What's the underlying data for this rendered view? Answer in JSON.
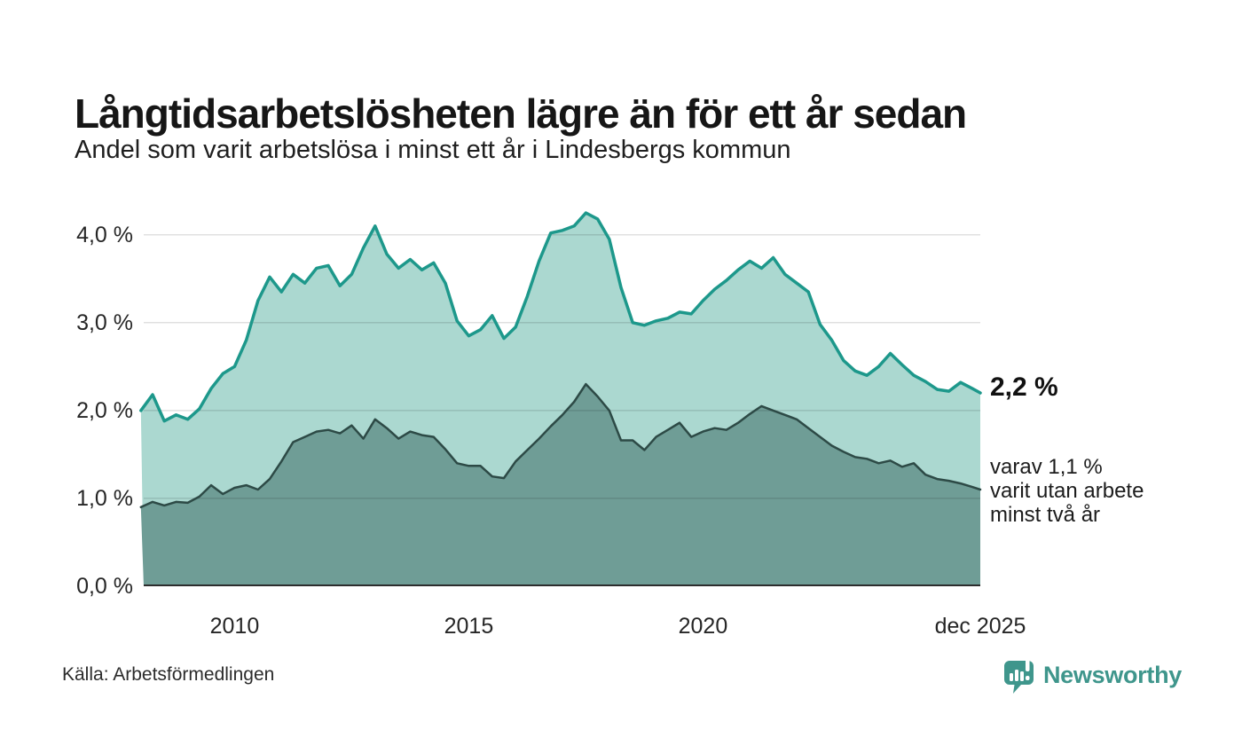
{
  "annotations": {
    "latest_total": "2,2 %",
    "latest_two_years": "varav 1,1 %\nvarit utan arbete\nminst två år"
  },
  "source": {
    "label": "Källa: Arbetsförmedlingen"
  },
  "logo": {
    "brand": "Newsworthy"
  },
  "colors": {
    "background": "#ffffff",
    "gridline": "rgba(0,0,0,0.12)",
    "baseline": "#2d2d2d",
    "title_text": "#161616",
    "tick_text": "#262626",
    "brand_teal": "#3f968c"
  },
  "chart_data": {
    "type": "area",
    "title": "Långtidsarbetslösheten lägre än för ett år sedan",
    "subtitle": "Andel som varit arbetslösa i minst ett år i Lindesbergs kommun",
    "unit": "%",
    "grid": true,
    "legend": "none (direct labels at line ends)",
    "xlim": [
      2008.06,
      2025.92
    ],
    "ylim": [
      0,
      4.3
    ],
    "x_ticks": [
      {
        "value": 2010,
        "label": "2010"
      },
      {
        "value": 2015,
        "label": "2015"
      },
      {
        "value": 2020,
        "label": "2020"
      },
      {
        "value": 2025.92,
        "label": "dec 2025"
      }
    ],
    "y_ticks": [
      {
        "value": 0,
        "label": "0,0 %"
      },
      {
        "value": 1,
        "label": "1,0 %"
      },
      {
        "value": 2,
        "label": "2,0 %"
      },
      {
        "value": 3,
        "label": "3,0 %"
      },
      {
        "value": 4,
        "label": "4,0 %"
      }
    ],
    "x": [
      2008,
      2008.25,
      2008.5,
      2008.75,
      2009,
      2009.25,
      2009.5,
      2009.75,
      2010,
      2010.25,
      2010.5,
      2010.75,
      2011,
      2011.25,
      2011.5,
      2011.75,
      2012,
      2012.25,
      2012.5,
      2012.75,
      2013,
      2013.25,
      2013.5,
      2013.75,
      2014,
      2014.25,
      2014.5,
      2014.75,
      2015,
      2015.25,
      2015.5,
      2015.75,
      2016,
      2016.25,
      2016.5,
      2016.75,
      2017,
      2017.25,
      2017.5,
      2017.75,
      2018,
      2018.25,
      2018.5,
      2018.75,
      2019,
      2019.25,
      2019.5,
      2019.75,
      2020,
      2020.25,
      2020.5,
      2020.75,
      2021,
      2021.25,
      2021.5,
      2021.75,
      2022,
      2022.25,
      2022.5,
      2022.75,
      2023,
      2023.25,
      2023.5,
      2023.75,
      2024,
      2024.25,
      2024.5,
      2024.75,
      2025,
      2025.25,
      2025.5,
      2025.75,
      2025.92
    ],
    "series": [
      {
        "name": "Arbetslösa minst ett år",
        "color": "#1d988b",
        "fill": "#abd8d0",
        "latest_value": 2.2,
        "values": [
          2.0,
          2.18,
          1.88,
          1.95,
          1.9,
          2.02,
          2.25,
          2.42,
          2.5,
          2.8,
          3.25,
          3.52,
          3.35,
          3.55,
          3.45,
          3.62,
          3.65,
          3.42,
          3.55,
          3.85,
          4.1,
          3.78,
          3.62,
          3.72,
          3.6,
          3.68,
          3.45,
          3.02,
          2.85,
          2.92,
          3.08,
          2.82,
          2.95,
          3.3,
          3.7,
          4.02,
          4.05,
          4.1,
          4.25,
          4.18,
          3.95,
          3.4,
          3.0,
          2.97,
          3.02,
          3.05,
          3.12,
          3.1,
          3.25,
          3.38,
          3.48,
          3.6,
          3.7,
          3.62,
          3.74,
          3.55,
          3.45,
          3.35,
          2.98,
          2.8,
          2.57,
          2.45,
          2.4,
          2.5,
          2.65,
          2.52,
          2.4,
          2.33,
          2.24,
          2.22,
          2.32,
          2.25,
          2.2
        ]
      },
      {
        "name": "Varav arbetslösa minst två år",
        "color": "#2d4a46",
        "fill": "#6f9d96",
        "latest_value": 1.1,
        "values": [
          0.9,
          0.96,
          0.92,
          0.96,
          0.95,
          1.02,
          1.15,
          1.05,
          1.12,
          1.15,
          1.1,
          1.22,
          1.42,
          1.64,
          1.7,
          1.76,
          1.78,
          1.74,
          1.83,
          1.68,
          1.9,
          1.8,
          1.68,
          1.76,
          1.72,
          1.7,
          1.56,
          1.4,
          1.37,
          1.37,
          1.25,
          1.23,
          1.42,
          1.55,
          1.68,
          1.82,
          1.95,
          2.1,
          2.3,
          2.16,
          2.0,
          1.66,
          1.66,
          1.55,
          1.7,
          1.78,
          1.86,
          1.7,
          1.76,
          1.8,
          1.78,
          1.86,
          1.96,
          2.05,
          2.0,
          1.95,
          1.9,
          1.8,
          1.7,
          1.6,
          1.53,
          1.47,
          1.45,
          1.4,
          1.43,
          1.36,
          1.4,
          1.27,
          1.22,
          1.2,
          1.17,
          1.13,
          1.1
        ]
      }
    ]
  }
}
